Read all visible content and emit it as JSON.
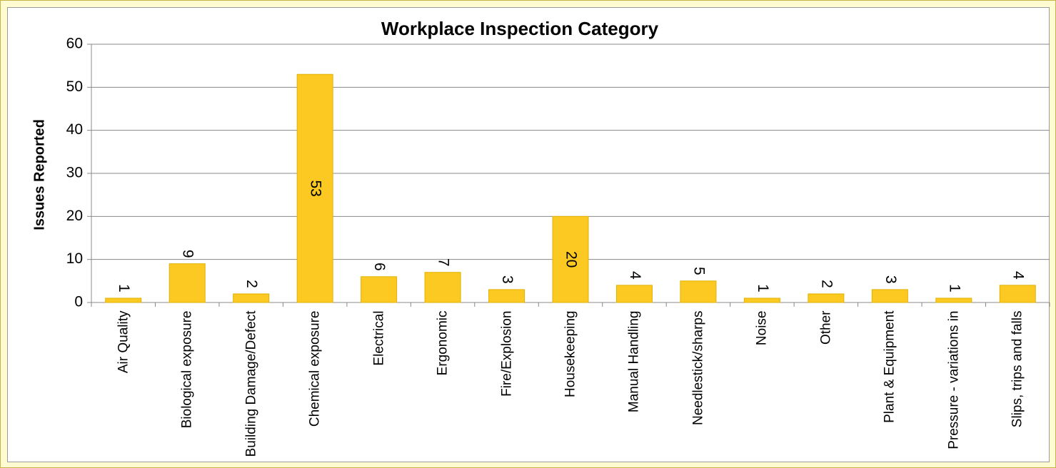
{
  "chart_data": {
    "type": "bar",
    "title": "Workplace Inspection Category",
    "y_label": "Issues Reported",
    "categories": [
      "Air Quality",
      "Biological exposure",
      "Building Damage/Defect",
      "Chemical exposure",
      "Electrical",
      "Ergonomic",
      "Fire/Explosion",
      "Housekeeping",
      "Manual Handling",
      "Needlestick/sharps",
      "Noise",
      "Other",
      "Plant & Equipment",
      "Pressure - variations in",
      "Slips, trips and falls"
    ],
    "values": [
      1,
      9,
      2,
      53,
      6,
      7,
      3,
      20,
      4,
      5,
      1,
      2,
      3,
      1,
      4
    ],
    "color": "#fcc922",
    "ylim": [
      0,
      60
    ],
    "yticks": [
      0,
      10,
      20,
      30,
      40,
      50,
      60
    ],
    "grid": true
  }
}
